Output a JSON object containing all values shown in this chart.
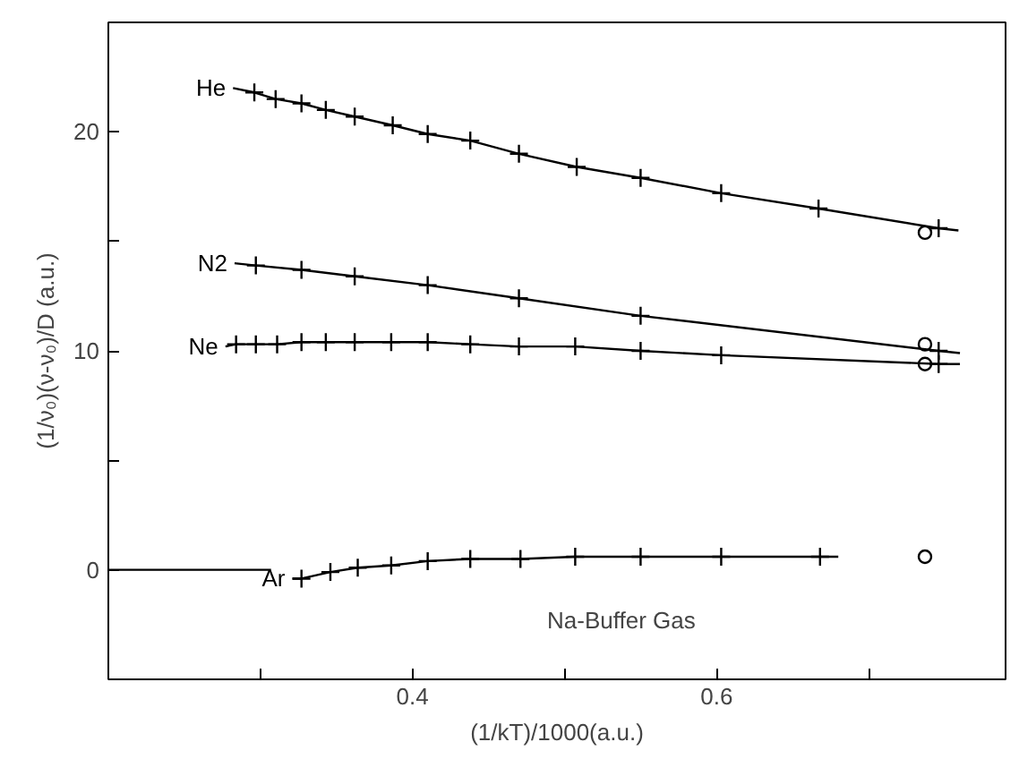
{
  "chart_data": {
    "type": "line",
    "xlabel": "(1/kT)/1000(a.u.)",
    "ylabel": "(1/ν₀)(ν-ν₀)/D (a.u.)",
    "xlim": [
      0.2,
      0.79
    ],
    "ylim": [
      -5,
      25
    ],
    "xticks": [
      {
        "value": 0.3,
        "label": null
      },
      0.4,
      {
        "value": 0.5,
        "label": null
      },
      0.6,
      {
        "value": 0.7,
        "label": null
      }
    ],
    "yticks": [
      0,
      {
        "value": 5,
        "label": null
      },
      10,
      {
        "value": 15,
        "label": null
      },
      20
    ],
    "grid": false,
    "annotations": [
      "Na-Buffer Gas"
    ],
    "series": [
      {
        "name": "He",
        "marker": "none",
        "color": "#000000",
        "x": [
          0.282,
          0.296,
          0.31,
          0.327,
          0.343,
          0.362,
          0.387,
          0.41,
          0.438,
          0.47,
          0.508,
          0.55,
          0.603,
          0.667,
          0.746,
          0.759
        ],
        "values": [
          22.0,
          21.8,
          21.5,
          21.3,
          21.0,
          20.7,
          20.3,
          19.9,
          19.6,
          19.0,
          18.4,
          17.9,
          17.2,
          16.5,
          15.6,
          15.5
        ]
      },
      {
        "type": "scatter",
        "marker": "cross",
        "color": "#000000",
        "x": [
          0.296,
          0.31,
          0.327,
          0.343,
          0.362,
          0.387,
          0.41,
          0.438,
          0.47,
          0.508,
          0.55,
          0.603,
          0.667,
          0.746
        ],
        "values": [
          21.8,
          21.5,
          21.3,
          21.0,
          20.7,
          20.3,
          19.9,
          19.6,
          19.0,
          18.4,
          17.9,
          17.2,
          16.5,
          15.6
        ]
      },
      {
        "name": "N2",
        "marker": "none",
        "color": "#000000",
        "x": [
          0.283,
          0.297,
          0.327,
          0.362,
          0.41,
          0.47,
          0.55,
          0.746,
          0.76
        ],
        "values": [
          14.0,
          13.9,
          13.7,
          13.4,
          13.0,
          12.4,
          11.6,
          10.0,
          9.9
        ]
      },
      {
        "type": "scatter",
        "marker": "cross",
        "color": "#000000",
        "x": [
          0.297,
          0.327,
          0.362,
          0.41,
          0.47,
          0.55,
          0.746
        ],
        "values": [
          13.9,
          13.7,
          13.4,
          13.0,
          12.4,
          11.6,
          10.0
        ]
      },
      {
        "name": "Ne",
        "marker": "none",
        "color": "#000000",
        "x": [
          0.277,
          0.284,
          0.297,
          0.311,
          0.327,
          0.343,
          0.362,
          0.386,
          0.41,
          0.438,
          0.47,
          0.507,
          0.55,
          0.603,
          0.746,
          0.76
        ],
        "values": [
          10.2,
          10.3,
          10.3,
          10.3,
          10.4,
          10.4,
          10.4,
          10.4,
          10.4,
          10.3,
          10.2,
          10.2,
          10.0,
          9.8,
          9.4,
          9.4
        ]
      },
      {
        "type": "scatter",
        "marker": "cross",
        "color": "#000000",
        "x": [
          0.284,
          0.297,
          0.311,
          0.327,
          0.343,
          0.362,
          0.386,
          0.41,
          0.438,
          0.47,
          0.507,
          0.55,
          0.603,
          0.746
        ],
        "values": [
          10.3,
          10.3,
          10.3,
          10.4,
          10.4,
          10.4,
          10.4,
          10.4,
          10.3,
          10.2,
          10.2,
          10.0,
          9.8,
          9.4
        ]
      },
      {
        "name": "Ar",
        "marker": "none",
        "color": "#000000",
        "x": [
          0.321,
          0.327,
          0.346,
          0.364,
          0.386,
          0.41,
          0.438,
          0.471,
          0.507,
          0.55,
          0.603,
          0.668,
          0.68
        ],
        "values": [
          -0.4,
          -0.4,
          -0.1,
          0.1,
          0.2,
          0.4,
          0.5,
          0.5,
          0.6,
          0.6,
          0.6,
          0.6,
          0.6
        ]
      },
      {
        "type": "scatter",
        "marker": "cross",
        "color": "#000000",
        "x": [
          0.327,
          0.346,
          0.364,
          0.386,
          0.41,
          0.438,
          0.471,
          0.507,
          0.55,
          0.603,
          0.668
        ],
        "values": [
          -0.4,
          -0.1,
          0.1,
          0.2,
          0.4,
          0.5,
          0.5,
          0.6,
          0.6,
          0.6,
          0.6
        ]
      },
      {
        "marker": "none",
        "color": "#000000",
        "x": [
          0.2,
          0.307
        ],
        "values": [
          0,
          0
        ]
      },
      {
        "type": "scatter",
        "marker": "circle",
        "color": "#000000",
        "x": [
          0.737,
          0.737,
          0.737,
          0.737
        ],
        "values": [
          15.4,
          10.3,
          9.4,
          0.6
        ]
      }
    ]
  }
}
